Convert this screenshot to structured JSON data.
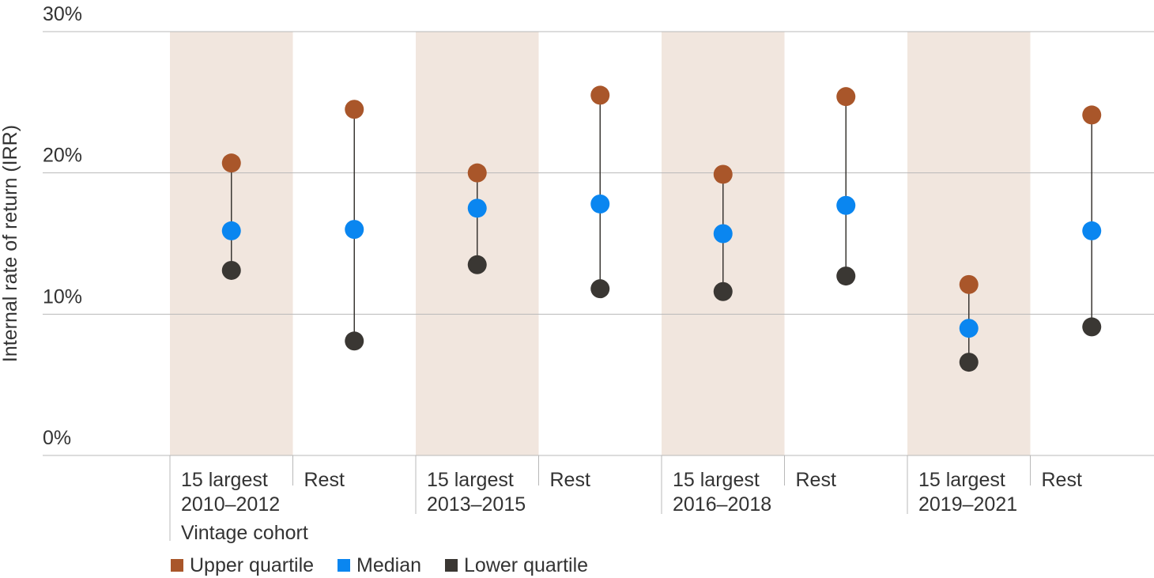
{
  "chart_data": {
    "type": "scatter",
    "title": "",
    "xlabel": "",
    "ylabel": "Internal rate of return (IRR)",
    "ylim": [
      0,
      30
    ],
    "y_ticks": [
      "0%",
      "10%",
      "20%",
      "30%"
    ],
    "x_axis_title": "Vintage cohort",
    "grid": true,
    "groups": [
      {
        "period": "2010–2012",
        "categories": [
          "15 largest",
          "Rest"
        ]
      },
      {
        "period": "2013–2015",
        "categories": [
          "15 largest",
          "Rest"
        ]
      },
      {
        "period": "2016–2018",
        "categories": [
          "15 largest",
          "Rest"
        ]
      },
      {
        "period": "2019–2021",
        "categories": [
          "15 largest",
          "Rest"
        ]
      }
    ],
    "series": [
      {
        "name": "Upper quartile",
        "color": "#a9562a",
        "values": [
          20.7,
          24.5,
          20.0,
          25.5,
          19.9,
          25.4,
          12.1,
          24.1
        ]
      },
      {
        "name": "Median",
        "color": "#0a86f0",
        "values": [
          15.9,
          16.0,
          17.5,
          17.8,
          15.7,
          17.7,
          9.0,
          15.9
        ]
      },
      {
        "name": "Lower quartile",
        "color": "#3a3733",
        "values": [
          13.1,
          8.1,
          13.5,
          11.8,
          11.6,
          12.7,
          6.6,
          9.1
        ]
      }
    ],
    "legend_position": "bottom-left"
  },
  "colors": {
    "shade": "#f1e6de",
    "grid": "#b8b8b8",
    "connector": "#3a3733"
  }
}
